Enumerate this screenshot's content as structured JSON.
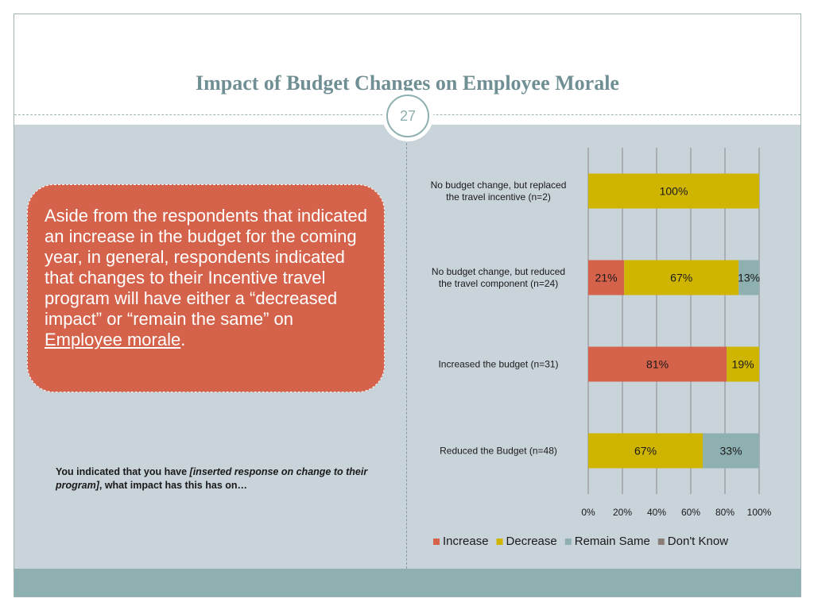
{
  "slide": {
    "title": "Impact of Budget Changes on Employee Morale",
    "page_number": "27"
  },
  "callout": {
    "text": "Aside from the respondents that indicated an increase in the budget for the coming year, in general, respondents indicated that changes to their Incentive travel program will have either a “decreased impact” or “remain the same” on ",
    "link_text": "Employee morale",
    "end": "."
  },
  "question": {
    "prefix": "You indicated that you have ",
    "italic": "[inserted response  on change to their program]",
    "suffix": ", what impact has this has on…"
  },
  "chart_data": {
    "type": "bar",
    "orientation": "horizontal",
    "stacked": true,
    "title": "",
    "xlabel": "",
    "ylabel": "",
    "xlim": [
      0,
      100
    ],
    "x_ticks": [
      "0%",
      "20%",
      "40%",
      "60%",
      "80%",
      "100%"
    ],
    "grid": true,
    "legend_position": "bottom",
    "categories": [
      [
        "No budget change, but replaced",
        "the travel incentive (n=2)"
      ],
      [
        "No budget change, but reduced",
        "the travel component (n=24)"
      ],
      [
        "Increased the budget (n=31)"
      ],
      [
        "Reduced the Budget (n=48)"
      ]
    ],
    "series": [
      {
        "name": "Increase",
        "color": "#d5624a",
        "values": [
          0,
          21,
          81,
          0
        ],
        "labels": [
          "",
          "21%",
          "81%",
          ""
        ]
      },
      {
        "name": "Decrease",
        "color": "#cfb400",
        "values": [
          100,
          67,
          19,
          67
        ],
        "labels": [
          "100%",
          "67%",
          "19%",
          "67%"
        ]
      },
      {
        "name": "Remain Same",
        "color": "#8fb0b0",
        "values": [
          0,
          13,
          0,
          33
        ],
        "labels": [
          "",
          "13%",
          "",
          "33%"
        ]
      },
      {
        "name": "Don't Know",
        "color": "#8a7d78",
        "values": [
          0,
          0,
          0,
          0
        ],
        "labels": [
          "",
          "",
          "",
          ""
        ]
      }
    ]
  }
}
